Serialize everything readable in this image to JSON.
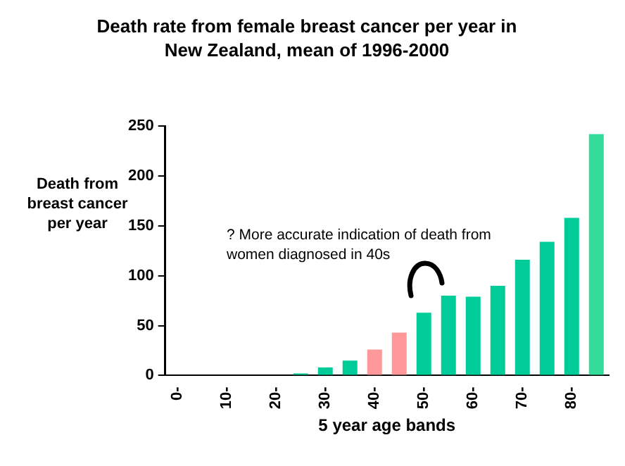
{
  "chart_data": {
    "type": "bar",
    "title": "Death rate from female breast cancer per year in New Zealand, mean of 1996-2000",
    "xlabel": "5 year age bands",
    "ylabel": "Death from breast cancer per year",
    "categories": [
      "0-",
      null,
      "10-",
      null,
      "20-",
      null,
      "30-",
      null,
      "40-",
      null,
      "50-",
      null,
      "60-",
      null,
      "70-",
      null,
      "80-",
      null
    ],
    "values": [
      0,
      0,
      0,
      0,
      0,
      2,
      8,
      15,
      26,
      43,
      63,
      80,
      79,
      90,
      116,
      134,
      158,
      242
    ],
    "colors": [
      "#00cc99",
      "#00cc99",
      "#00cc99",
      "#00cc99",
      "#00cc99",
      "#00cc99",
      "#00cc99",
      "#00cc99",
      "#ff9999",
      "#ff9999",
      "#00cc99",
      "#00cc99",
      "#00cc99",
      "#00cc99",
      "#00cc99",
      "#00cc99",
      "#00cc99",
      "#33dd99"
    ],
    "ylim": [
      0,
      250
    ],
    "yticks": [
      0,
      50,
      100,
      150,
      200,
      250
    ],
    "annotations": [
      "? More accurate indication of death from women diagnosed in 40s"
    ],
    "grid": false,
    "legend": false
  }
}
